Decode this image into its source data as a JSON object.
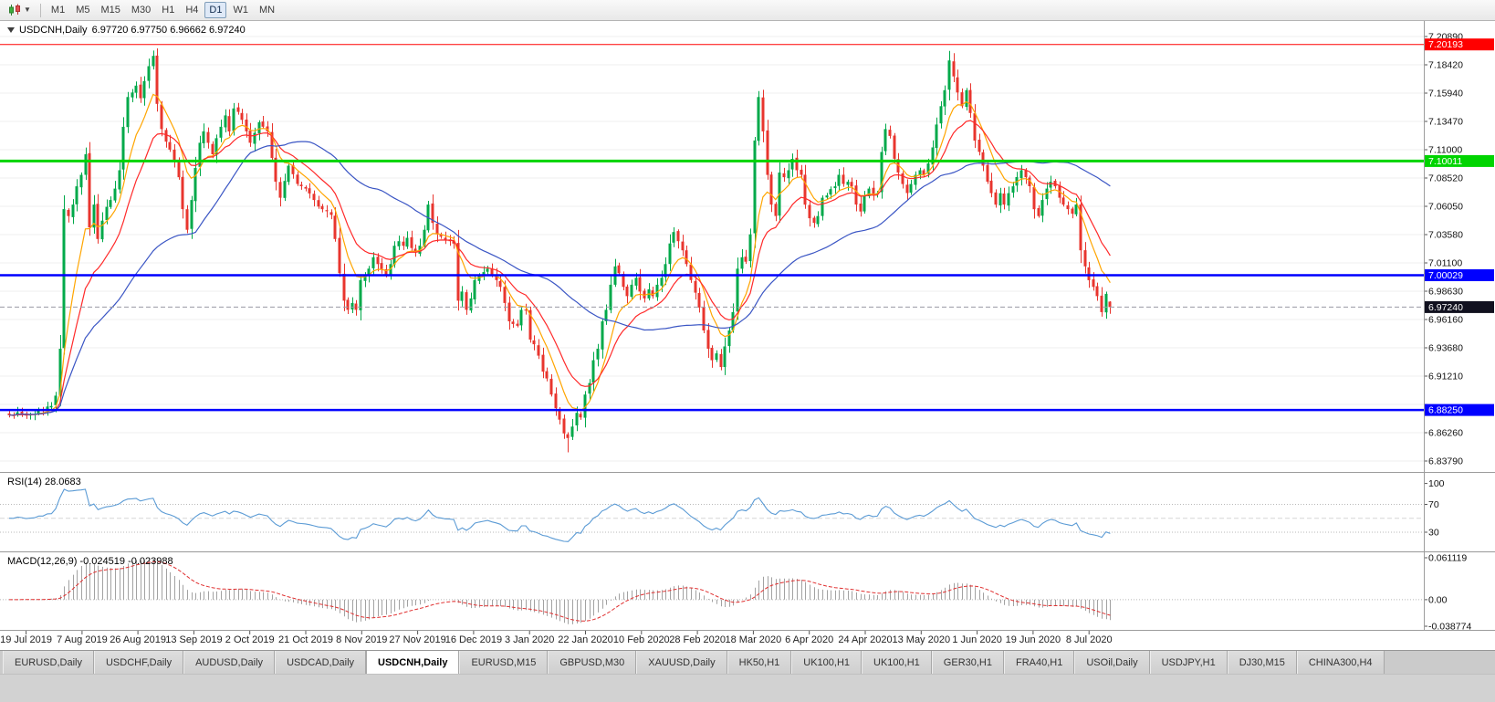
{
  "toolbar": {
    "timeframes": [
      "M1",
      "M5",
      "M15",
      "M30",
      "H1",
      "H4",
      "D1",
      "W1",
      "MN"
    ],
    "active": "D1",
    "chart_type_icon": "candlestick-chart-icon"
  },
  "chart_header": {
    "symbol": "USDCNH,Daily",
    "ohlc": "6.97720 6.97750 6.96662 6.97240"
  },
  "panels": {
    "rsi_label": "RSI(14) 28.0683",
    "macd_label": "MACD(12,26,9) -0.024519 -0.023988"
  },
  "tabs": {
    "active_index": 4,
    "items": [
      "EURUSD,Daily",
      "USDCHF,Daily",
      "AUDUSD,Daily",
      "USDCAD,Daily",
      "USDCNH,Daily",
      "EURUSD,M15",
      "GBPUSD,M30",
      "XAUUSD,Daily",
      "HK50,H1",
      "UK100,H1",
      "UK100,H1",
      "GER30,H1",
      "FRA40,H1",
      "USOil,Daily",
      "USDJPY,H1",
      "DJ30,M15",
      "CHINA300,H4"
    ]
  },
  "chart_data": {
    "type": "candlestick",
    "symbol": "USDCNH",
    "timeframe": "Daily",
    "ohlc_current": {
      "open": 6.9772,
      "high": 6.9775,
      "low": 6.96662,
      "close": 6.9724
    },
    "price_axis": {
      "labels": [
        "7.20890",
        "7.18420",
        "7.15940",
        "7.13470",
        "7.11000",
        "7.08520",
        "7.06050",
        "7.03580",
        "7.01100",
        "6.98630",
        "6.96160",
        "6.93680",
        "6.91210",
        "6.88740",
        "6.86260",
        "6.83790"
      ]
    },
    "x_labels": [
      "19 Jul 2019",
      "7 Aug 2019",
      "26 Aug 2019",
      "13 Sep 2019",
      "2 Oct 2019",
      "21 Oct 2019",
      "8 Nov 2019",
      "27 Nov 2019",
      "16 Dec 2019",
      "3 Jan 2020",
      "22 Jan 2020",
      "10 Feb 2020",
      "28 Feb 2020",
      "18 Mar 2020",
      "6 Apr 2020",
      "24 Apr 2020",
      "13 May 2020",
      "1 Jun 2020",
      "19 Jun 2020",
      "8 Jul 2020"
    ],
    "hlines": [
      {
        "price": 7.20193,
        "label": "7.20193",
        "color": "#ff0000",
        "width": 1
      },
      {
        "price": 7.10011,
        "label": "7.10011",
        "color": "#00d400",
        "width": 3
      },
      {
        "price": 7.00029,
        "label": "7.00029",
        "color": "#0000ff",
        "width": 2.5
      },
      {
        "price": 6.8825,
        "label": "6.88250",
        "color": "#0000ff",
        "width": 2.5
      }
    ],
    "current_price": {
      "value": 6.9724,
      "label": "6.97240",
      "bg": "#11111f"
    },
    "candle_colors": {
      "up": "#00a94a",
      "down": "#e8352e"
    },
    "moving_averages": [
      {
        "name": "fast-ema",
        "period": 8,
        "kind": "ema",
        "color": "#ffa500"
      },
      {
        "name": "mid-ema",
        "period": 16,
        "kind": "ema",
        "color": "#ff2a2a"
      },
      {
        "name": "slow-sma",
        "period": 45,
        "kind": "sma",
        "color": "#3a55c4"
      }
    ],
    "rsi": {
      "period": 14,
      "current": 28.0683,
      "color": "#5b9bd5",
      "axis_labels": [
        "100",
        "70",
        "30"
      ],
      "levels": [
        70,
        50,
        30
      ]
    },
    "macd": {
      "fast": 12,
      "slow": 26,
      "signal": 9,
      "current": -0.024519,
      "signal_current": -0.023988,
      "axis_labels": [
        "0.061119",
        "0.00",
        "-0.038774"
      ],
      "scale_max": 0.0611195,
      "scale_min": -0.0387745,
      "hist_color": "#a2a2a2",
      "signal_color": "#e03030"
    },
    "bars": {
      "count": 261,
      "anchors": [
        [
          0,
          6.878
        ],
        [
          2,
          6.8805
        ],
        [
          4,
          6.8775
        ],
        [
          6,
          6.879
        ],
        [
          8,
          6.882
        ],
        [
          10,
          6.886
        ],
        [
          11,
          6.895
        ],
        [
          12,
          6.936
        ],
        [
          13,
          7.058
        ],
        [
          14,
          7.052
        ],
        [
          15,
          7.062
        ],
        [
          16,
          7.078
        ],
        [
          17,
          7.088
        ],
        [
          18,
          7.106
        ],
        [
          19,
          7.042
        ],
        [
          20,
          7.062
        ],
        [
          21,
          7.032
        ],
        [
          22,
          7.048
        ],
        [
          23,
          7.06
        ],
        [
          24,
          7.066
        ],
        [
          25,
          7.076
        ],
        [
          26,
          7.092
        ],
        [
          27,
          7.13
        ],
        [
          28,
          7.156
        ],
        [
          29,
          7.16
        ],
        [
          30,
          7.166
        ],
        [
          31,
          7.155
        ],
        [
          32,
          7.17
        ],
        [
          33,
          7.183
        ],
        [
          34,
          7.192
        ],
        [
          35,
          7.15
        ],
        [
          36,
          7.128
        ],
        [
          37,
          7.117
        ],
        [
          38,
          7.11
        ],
        [
          39,
          7.1
        ],
        [
          40,
          7.086
        ],
        [
          41,
          7.058
        ],
        [
          42,
          7.04
        ],
        [
          43,
          7.066
        ],
        [
          44,
          7.094
        ],
        [
          45,
          7.116
        ],
        [
          46,
          7.126
        ],
        [
          47,
          7.116
        ],
        [
          48,
          7.106
        ],
        [
          49,
          7.12
        ],
        [
          50,
          7.13
        ],
        [
          51,
          7.14
        ],
        [
          52,
          7.126
        ],
        [
          53,
          7.146
        ],
        [
          54,
          7.143
        ],
        [
          55,
          7.136
        ],
        [
          56,
          7.126
        ],
        [
          57,
          7.116
        ],
        [
          59,
          7.134
        ],
        [
          61,
          7.126
        ],
        [
          63,
          7.082
        ],
        [
          64,
          7.068
        ],
        [
          66,
          7.096
        ],
        [
          68,
          7.08
        ],
        [
          70,
          7.076
        ],
        [
          72,
          7.066
        ],
        [
          74,
          7.058
        ],
        [
          76,
          7.053
        ],
        [
          77,
          7.032
        ],
        [
          78,
          7.002
        ],
        [
          79,
          6.978
        ],
        [
          80,
          6.97
        ],
        [
          81,
          6.976
        ],
        [
          82,
          6.97
        ],
        [
          83,
          6.996
        ],
        [
          84,
          7.0
        ],
        [
          85,
          7.006
        ],
        [
          86,
          7.016
        ],
        [
          87,
          7.01
        ],
        [
          89,
          7.0
        ],
        [
          90,
          7.01
        ],
        [
          91,
          7.026
        ],
        [
          92,
          7.03
        ],
        [
          93,
          7.026
        ],
        [
          94,
          7.033
        ],
        [
          95,
          7.024
        ],
        [
          96,
          7.02
        ],
        [
          97,
          7.026
        ],
        [
          98,
          7.04
        ],
        [
          99,
          7.062
        ],
        [
          100,
          7.046
        ],
        [
          101,
          7.036
        ],
        [
          102,
          7.034
        ],
        [
          104,
          7.03
        ],
        [
          105,
          7.028
        ],
        [
          106,
          6.978
        ],
        [
          107,
          6.986
        ],
        [
          108,
          6.97
        ],
        [
          109,
          6.98
        ],
        [
          110,
          6.996
        ],
        [
          111,
          7.0
        ],
        [
          112,
          7.003
        ],
        [
          113,
          7.006
        ],
        [
          114,
          7.0
        ],
        [
          115,
          6.996
        ],
        [
          116,
          6.99
        ],
        [
          117,
          6.976
        ],
        [
          118,
          6.96
        ],
        [
          120,
          6.956
        ],
        [
          121,
          6.97
        ],
        [
          122,
          6.97
        ],
        [
          123,
          6.944
        ],
        [
          124,
          6.94
        ],
        [
          125,
          6.93
        ],
        [
          126,
          6.916
        ],
        [
          127,
          6.91
        ],
        [
          128,
          6.896
        ],
        [
          129,
          6.884
        ],
        [
          130,
          6.874
        ],
        [
          131,
          6.862
        ],
        [
          132,
          6.858
        ],
        [
          133,
          6.868
        ],
        [
          134,
          6.88
        ],
        [
          135,
          6.876
        ],
        [
          136,
          6.896
        ],
        [
          137,
          6.906
        ],
        [
          138,
          6.926
        ],
        [
          139,
          6.936
        ],
        [
          140,
          6.96
        ],
        [
          141,
          6.97
        ],
        [
          142,
          6.992
        ],
        [
          143,
          7.008
        ],
        [
          144,
          7.002
        ],
        [
          145,
          6.99
        ],
        [
          146,
          6.982
        ],
        [
          147,
          6.992
        ],
        [
          148,
          6.998
        ],
        [
          149,
          6.986
        ],
        [
          150,
          6.98
        ],
        [
          151,
          6.988
        ],
        [
          152,
          6.982
        ],
        [
          153,
          6.992
        ],
        [
          154,
          6.998
        ],
        [
          155,
          7.01
        ],
        [
          156,
          7.028
        ],
        [
          157,
          7.038
        ],
        [
          158,
          7.03
        ],
        [
          159,
          7.022
        ],
        [
          160,
          7.01
        ],
        [
          161,
          6.996
        ],
        [
          162,
          6.985
        ],
        [
          163,
          6.972
        ],
        [
          164,
          6.952
        ],
        [
          165,
          6.936
        ],
        [
          166,
          6.926
        ],
        [
          167,
          6.932
        ],
        [
          168,
          6.92
        ],
        [
          169,
          6.938
        ],
        [
          170,
          6.952
        ],
        [
          171,
          6.968
        ],
        [
          172,
          7.006
        ],
        [
          173,
          7.016
        ],
        [
          174,
          7.012
        ],
        [
          175,
          7.036
        ],
        [
          176,
          7.118
        ],
        [
          177,
          7.156
        ],
        [
          178,
          7.126
        ],
        [
          179,
          7.088
        ],
        [
          180,
          7.062
        ],
        [
          181,
          7.052
        ],
        [
          182,
          7.09
        ],
        [
          183,
          7.086
        ],
        [
          184,
          7.092
        ],
        [
          185,
          7.102
        ],
        [
          186,
          7.092
        ],
        [
          187,
          7.088
        ],
        [
          188,
          7.062
        ],
        [
          189,
          7.05
        ],
        [
          190,
          7.046
        ],
        [
          191,
          7.052
        ],
        [
          192,
          7.068
        ],
        [
          193,
          7.07
        ],
        [
          195,
          7.078
        ],
        [
          196,
          7.088
        ],
        [
          197,
          7.08
        ],
        [
          198,
          7.082
        ],
        [
          199,
          7.078
        ],
        [
          200,
          7.062
        ],
        [
          201,
          7.056
        ],
        [
          202,
          7.07
        ],
        [
          203,
          7.076
        ],
        [
          204,
          7.07
        ],
        [
          205,
          7.072
        ],
        [
          206,
          7.108
        ],
        [
          207,
          7.128
        ],
        [
          208,
          7.122
        ],
        [
          209,
          7.102
        ],
        [
          210,
          7.09
        ],
        [
          211,
          7.08
        ],
        [
          212,
          7.072
        ],
        [
          213,
          7.08
        ],
        [
          214,
          7.088
        ],
        [
          215,
          7.092
        ],
        [
          216,
          7.088
        ],
        [
          217,
          7.098
        ],
        [
          218,
          7.112
        ],
        [
          219,
          7.132
        ],
        [
          220,
          7.148
        ],
        [
          221,
          7.162
        ],
        [
          222,
          7.188
        ],
        [
          223,
          7.174
        ],
        [
          224,
          7.16
        ],
        [
          225,
          7.148
        ],
        [
          226,
          7.162
        ],
        [
          227,
          7.142
        ],
        [
          228,
          7.118
        ],
        [
          229,
          7.108
        ],
        [
          230,
          7.096
        ],
        [
          231,
          7.082
        ],
        [
          232,
          7.072
        ],
        [
          233,
          7.062
        ],
        [
          234,
          7.072
        ],
        [
          235,
          7.062
        ],
        [
          236,
          7.072
        ],
        [
          237,
          7.078
        ],
        [
          238,
          7.086
        ],
        [
          239,
          7.092
        ],
        [
          240,
          7.086
        ],
        [
          241,
          7.078
        ],
        [
          242,
          7.058
        ],
        [
          243,
          7.052
        ],
        [
          244,
          7.066
        ],
        [
          245,
          7.076
        ],
        [
          246,
          7.082
        ],
        [
          247,
          7.078
        ],
        [
          248,
          7.068
        ],
        [
          249,
          7.062
        ],
        [
          250,
          7.058
        ],
        [
          251,
          7.054
        ],
        [
          252,
          7.062
        ],
        [
          253,
          7.022
        ],
        [
          254,
          7.008
        ],
        [
          255,
          6.996
        ],
        [
          256,
          6.99
        ],
        [
          257,
          6.982
        ],
        [
          258,
          6.968
        ],
        [
          259,
          6.984
        ],
        [
          260,
          6.9724
        ]
      ]
    }
  }
}
